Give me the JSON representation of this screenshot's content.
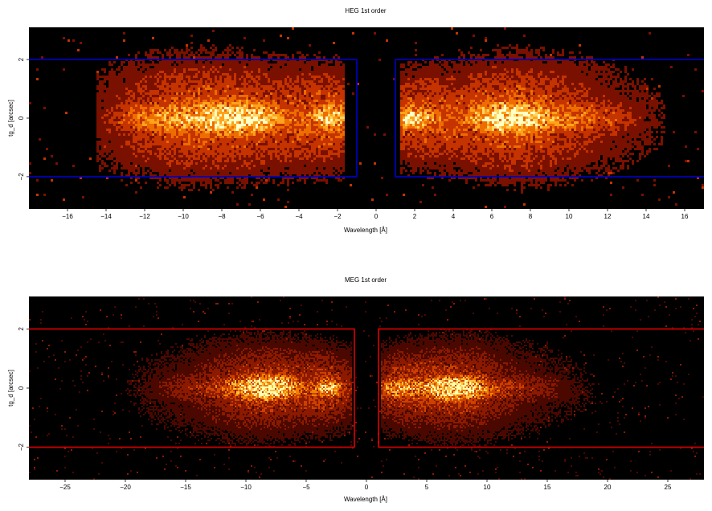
{
  "chart_data": [
    {
      "type": "heatmap",
      "title": "HEG 1st order",
      "xlabel": "Wavelength [Å]",
      "ylabel": "tg_d [arcsec]",
      "xlim": [
        -18,
        17
      ],
      "ylim": [
        -3.1,
        3.1
      ],
      "xticks": [
        -16,
        -14,
        -12,
        -10,
        -8,
        -6,
        -4,
        -2,
        0,
        2,
        4,
        6,
        8,
        10,
        12,
        14,
        16
      ],
      "xtick_labels": [
        "−16",
        "−14",
        "−12",
        "−10",
        "−8",
        "−6",
        "−4",
        "−2",
        "0",
        "2",
        "4",
        "6",
        "8",
        "10",
        "12",
        "14",
        "16"
      ],
      "yticks": [
        -2,
        0,
        2
      ],
      "ytick_labels": [
        "−2",
        "0",
        "2"
      ],
      "background_color": "#000000",
      "colormap": [
        "#7a1000",
        "#c43300",
        "#ee6d00",
        "#ffa31c",
        "#ffd560",
        "#ffffc8"
      ],
      "boxes": [
        {
          "x": [
            -18,
            -1
          ],
          "y": [
            -2,
            2
          ],
          "color": "#0000cc"
        },
        {
          "x": [
            1,
            17
          ],
          "y": [
            -2,
            2
          ],
          "color": "#0000cc"
        }
      ],
      "clusters": [
        {
          "x_center": -7.2,
          "x_sigma": 2.0,
          "y_sigma": 0.45,
          "weight": 1.0
        },
        {
          "x_center": -2.3,
          "x_sigma": 0.9,
          "y_sigma": 0.4,
          "weight": 0.8
        },
        {
          "x_center": -11.5,
          "x_sigma": 1.8,
          "y_sigma": 0.5,
          "weight": 0.45
        },
        {
          "x_center": 2.0,
          "x_sigma": 1.0,
          "y_sigma": 0.35,
          "weight": 0.85
        },
        {
          "x_center": 6.7,
          "x_sigma": 1.6,
          "y_sigma": 0.45,
          "weight": 0.95
        },
        {
          "x_center": 10.5,
          "x_sigma": 2.2,
          "y_sigma": 0.5,
          "weight": 0.4
        }
      ],
      "data_x_range": [
        [
          -14.5,
          -1.6
        ],
        [
          1.3,
          15.0
        ]
      ]
    },
    {
      "type": "heatmap",
      "title": "MEG 1st order",
      "xlabel": "Wavelength [Å]",
      "ylabel": "tg_d [arcsec]",
      "xlim": [
        -28,
        28
      ],
      "ylim": [
        -3.1,
        3.1
      ],
      "xticks": [
        -25,
        -20,
        -15,
        -10,
        -5,
        0,
        5,
        10,
        15,
        20,
        25
      ],
      "xtick_labels": [
        "−25",
        "−20",
        "−15",
        "−10",
        "−5",
        "0",
        "5",
        "10",
        "15",
        "20",
        "25"
      ],
      "yticks": [
        -2,
        0,
        2
      ],
      "ytick_labels": [
        "−2",
        "0",
        "2"
      ],
      "background_color": "#000000",
      "colormap": [
        "#4a0800",
        "#8c1a00",
        "#cc4000",
        "#f08000",
        "#ffc040",
        "#ffffb0"
      ],
      "boxes": [
        {
          "x": [
            -28,
            -1
          ],
          "y": [
            -2,
            2
          ],
          "color": "#e00000"
        },
        {
          "x": [
            1,
            28
          ],
          "y": [
            -2,
            2
          ],
          "color": "#e00000"
        }
      ],
      "clusters": [
        {
          "x_center": -8.0,
          "x_sigma": 2.2,
          "y_sigma": 0.35,
          "weight": 1.0
        },
        {
          "x_center": -3.0,
          "x_sigma": 1.0,
          "y_sigma": 0.3,
          "weight": 0.75
        },
        {
          "x_center": -13.0,
          "x_sigma": 3.5,
          "y_sigma": 0.45,
          "weight": 0.3
        },
        {
          "x_center": 2.5,
          "x_sigma": 1.2,
          "y_sigma": 0.3,
          "weight": 0.7
        },
        {
          "x_center": 7.0,
          "x_sigma": 2.0,
          "y_sigma": 0.35,
          "weight": 1.0
        },
        {
          "x_center": 12.0,
          "x_sigma": 3.5,
          "y_sigma": 0.45,
          "weight": 0.3
        }
      ],
      "data_x_range": [
        [
          -27,
          -1.2
        ],
        [
          1.2,
          27
        ]
      ]
    }
  ]
}
